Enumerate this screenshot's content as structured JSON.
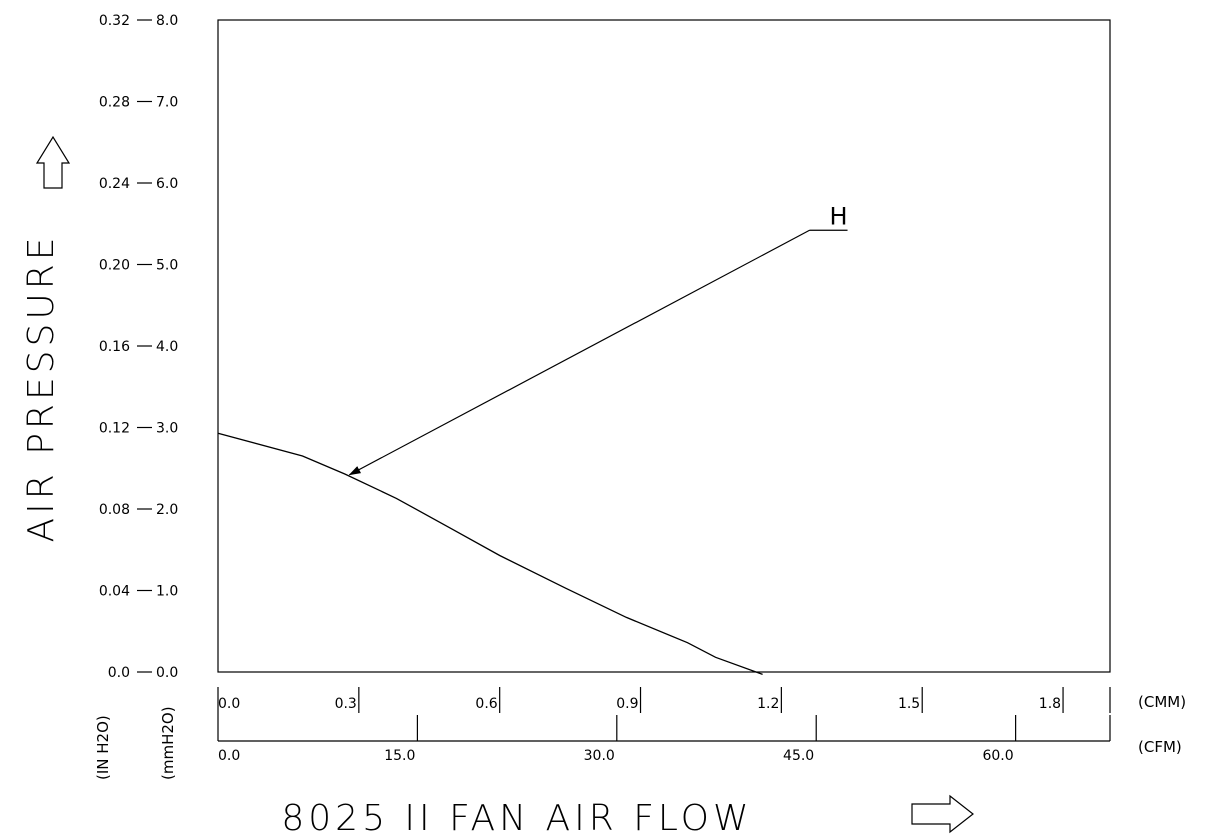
{
  "chart_data": {
    "type": "line",
    "title": "8025 II FAN  AIR FLOW",
    "ylabel": "AIR PRESSURE",
    "y_axes": {
      "mmH2O": {
        "unit": "(mmH2O)",
        "ticks": [
          "0.0",
          "1.0",
          "2.0",
          "3.0",
          "4.0",
          "5.0",
          "6.0",
          "7.0",
          "8.0"
        ],
        "range": [
          0,
          8
        ]
      },
      "inH2O": {
        "unit": "(IN H2O)",
        "ticks": [
          "0.0",
          "0.04",
          "0.08",
          "0.12",
          "0.16",
          "0.20",
          "0.24",
          "0.28",
          "0.32"
        ],
        "range": [
          0,
          0.32
        ]
      }
    },
    "x_axes": {
      "cmm": {
        "unit": "(CMM)",
        "ticks": [
          "0.0",
          "0.3",
          "0.6",
          "0.9",
          "1.2",
          "1.5",
          "1.8"
        ],
        "range": [
          0,
          1.9
        ]
      },
      "cfm": {
        "unit": "(CFM)",
        "ticks": [
          "0.0",
          "15.0",
          "30.0",
          "45.0",
          "60.0"
        ],
        "range": [
          0,
          67.1
        ]
      }
    },
    "series": [
      {
        "name": "H",
        "x_unit": "CMM",
        "y_unit": "mmH2O",
        "points": [
          [
            0.0,
            2.93
          ],
          [
            0.18,
            2.65
          ],
          [
            0.27,
            2.43
          ],
          [
            0.38,
            2.13
          ],
          [
            0.5,
            1.75
          ],
          [
            0.6,
            1.43
          ],
          [
            0.74,
            1.03
          ],
          [
            0.87,
            0.67
          ],
          [
            1.0,
            0.36
          ],
          [
            1.06,
            0.18
          ],
          [
            1.16,
            -0.03
          ]
        ]
      }
    ],
    "annotation": {
      "label": "H",
      "from": [
        1.26,
        5.42
      ],
      "to": [
        0.28,
        2.42
      ]
    },
    "grid": false
  }
}
